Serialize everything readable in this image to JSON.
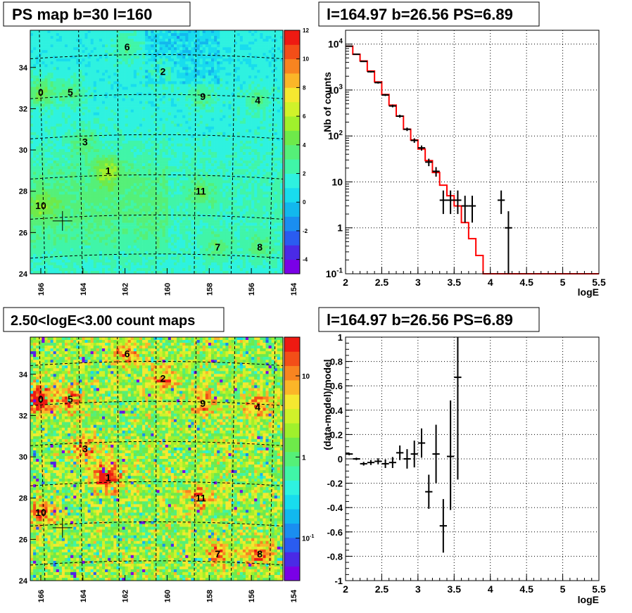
{
  "colors": {
    "data_marker": "#000000",
    "model_line": "#ff0000",
    "map_palette": [
      "#7a00e6",
      "#4a2ae6",
      "#2a5cf0",
      "#1a8ef0",
      "#12b8ee",
      "#18dcee",
      "#2ef2e0",
      "#40f5a8",
      "#55f078",
      "#6eea4a",
      "#a0f02c",
      "#d0f22a",
      "#f5e830",
      "#fbb628",
      "#f88420",
      "#f34e18",
      "#ee1a12"
    ]
  },
  "chart_data": [
    {
      "type": "heatmap",
      "title": "PS map b=30 l=160",
      "xlabel": "",
      "ylabel": "",
      "xlim": [
        154.5,
        166.5
      ],
      "x_reversed": true,
      "ylim": [
        24,
        35.8
      ],
      "xticks": [
        "166",
        "164",
        "162",
        "160",
        "158",
        "156",
        "154"
      ],
      "yticks": [
        "24",
        "26",
        "28",
        "30",
        "32",
        "34"
      ],
      "colorbar": {
        "scale": "linear",
        "range": [
          -5,
          12
        ],
        "ticks": [
          "-4",
          "-2",
          "0",
          "2",
          "4",
          "6",
          "8",
          "10",
          "12"
        ]
      },
      "sources": [
        {
          "label": "0",
          "x": 166.0,
          "y": 32.8
        },
        {
          "label": "1",
          "x": 162.8,
          "y": 29.0
        },
        {
          "label": "2",
          "x": 160.2,
          "y": 33.8
        },
        {
          "label": "3",
          "x": 163.9,
          "y": 30.4
        },
        {
          "label": "4",
          "x": 155.7,
          "y": 32.4
        },
        {
          "label": "5",
          "x": 164.6,
          "y": 32.8
        },
        {
          "label": "6",
          "x": 161.9,
          "y": 35.0
        },
        {
          "label": "7",
          "x": 157.6,
          "y": 25.3
        },
        {
          "label": "8",
          "x": 155.6,
          "y": 25.3
        },
        {
          "label": "9",
          "x": 158.3,
          "y": 32.6
        },
        {
          "label": "10",
          "x": 166.0,
          "y": 27.3
        },
        {
          "label": "11",
          "x": 158.4,
          "y": 28.0
        }
      ],
      "marker": {
        "x": 164.97,
        "y": 26.56
      }
    },
    {
      "type": "step",
      "title": "l=164.97 b=26.56 PS=6.89",
      "xlabel": "logE",
      "ylabel": "Nb of counts",
      "xlim": [
        2,
        5.5
      ],
      "ylim": [
        0.1,
        20000
      ],
      "yscale": "log",
      "xticks": [
        "2",
        "2.5",
        "3",
        "3.5",
        "4",
        "4.5",
        "5",
        "5.5"
      ],
      "yticks": [
        {
          "v": 0.1,
          "base": "10",
          "exp": "-1"
        },
        {
          "v": 1,
          "base": "1",
          "exp": ""
        },
        {
          "v": 10,
          "base": "10",
          "exp": ""
        },
        {
          "v": 100,
          "base": "10",
          "exp": "2"
        },
        {
          "v": 1000,
          "base": "10",
          "exp": "3"
        },
        {
          "v": 10000,
          "base": "10",
          "exp": "4"
        }
      ],
      "grid": true,
      "model": {
        "bin_edges": [
          2,
          2.1,
          2.2,
          2.3,
          2.4,
          2.5,
          2.6,
          2.7,
          2.8,
          2.9,
          3,
          3.1,
          3.2,
          3.3,
          3.4,
          3.5,
          3.6,
          3.7,
          3.8,
          3.9,
          4,
          4.1,
          4.2,
          4.3,
          4.4,
          4.5,
          4.6,
          4.7,
          4.8,
          4.9,
          5,
          5.1,
          5.2,
          5.3,
          5.4,
          5.5
        ],
        "values": [
          9000,
          6000,
          4300,
          2600,
          1500,
          800,
          470,
          270,
          140,
          82,
          52,
          29,
          16,
          8.5,
          5,
          3.0,
          1.3,
          0.58,
          0.25,
          0.1,
          0.1,
          0.1,
          0.1,
          0.1,
          0.1,
          0.1,
          0.1,
          0.1,
          0.1,
          0.1,
          0.1,
          0.1,
          0.1,
          0.1,
          0.1
        ]
      },
      "data": [
        {
          "x": 2.05,
          "y": 9000,
          "lo": 8800,
          "hi": 9200
        },
        {
          "x": 2.15,
          "y": 6000,
          "lo": 5850,
          "hi": 6150
        },
        {
          "x": 2.25,
          "y": 4200,
          "lo": 4080,
          "hi": 4320
        },
        {
          "x": 2.35,
          "y": 2500,
          "lo": 2400,
          "hi": 2600
        },
        {
          "x": 2.45,
          "y": 1450,
          "lo": 1380,
          "hi": 1520
        },
        {
          "x": 2.55,
          "y": 780,
          "lo": 740,
          "hi": 820
        },
        {
          "x": 2.65,
          "y": 450,
          "lo": 420,
          "hi": 480
        },
        {
          "x": 2.75,
          "y": 270,
          "lo": 250,
          "hi": 290
        },
        {
          "x": 2.85,
          "y": 140,
          "lo": 128,
          "hi": 152
        },
        {
          "x": 2.95,
          "y": 80,
          "lo": 71,
          "hi": 89
        },
        {
          "x": 3.05,
          "y": 55,
          "lo": 48,
          "hi": 62
        },
        {
          "x": 3.15,
          "y": 27,
          "lo": 22,
          "hi": 32
        },
        {
          "x": 3.25,
          "y": 17,
          "lo": 13,
          "hi": 21
        },
        {
          "x": 3.35,
          "y": 4,
          "lo": 2,
          "hi": 6.5
        },
        {
          "x": 3.45,
          "y": 4,
          "lo": 2,
          "hi": 6.5
        },
        {
          "x": 3.55,
          "y": 4,
          "lo": 2,
          "hi": 6.5
        },
        {
          "x": 3.65,
          "y": 3,
          "lo": 1.3,
          "hi": 5
        },
        {
          "x": 3.75,
          "y": 3,
          "lo": 1.3,
          "hi": 5
        },
        {
          "x": 4.15,
          "y": 4,
          "lo": 2,
          "hi": 6.5
        },
        {
          "x": 4.25,
          "y": 1,
          "lo": 0.1,
          "hi": 2.3
        }
      ]
    },
    {
      "type": "heatmap",
      "title": "2.50<logE<3.00 count maps",
      "xlabel": "",
      "ylabel": "",
      "xlim": [
        154.5,
        166.5
      ],
      "x_reversed": true,
      "ylim": [
        24,
        35.8
      ],
      "xticks": [
        "166",
        "164",
        "162",
        "160",
        "158",
        "156",
        "154"
      ],
      "yticks": [
        "24",
        "26",
        "28",
        "30",
        "32",
        "34"
      ],
      "colorbar": {
        "scale": "log",
        "range": [
          0.03,
          30
        ],
        "ticks": [
          {
            "v": 10,
            "base": "10",
            "exp": ""
          },
          {
            "v": 1,
            "base": "1",
            "exp": ""
          },
          {
            "v": 0.1,
            "base": "10",
            "exp": "-1"
          }
        ]
      },
      "sources": [
        {
          "label": "0",
          "x": 166.0,
          "y": 32.8
        },
        {
          "label": "1",
          "x": 162.8,
          "y": 29.0
        },
        {
          "label": "2",
          "x": 160.2,
          "y": 33.8
        },
        {
          "label": "3",
          "x": 163.9,
          "y": 30.4
        },
        {
          "label": "4",
          "x": 155.7,
          "y": 32.4
        },
        {
          "label": "5",
          "x": 164.6,
          "y": 32.8
        },
        {
          "label": "6",
          "x": 161.9,
          "y": 35.0
        },
        {
          "label": "7",
          "x": 157.6,
          "y": 25.3
        },
        {
          "label": "8",
          "x": 155.6,
          "y": 25.3
        },
        {
          "label": "9",
          "x": 158.3,
          "y": 32.6
        },
        {
          "label": "10",
          "x": 166.0,
          "y": 27.3
        },
        {
          "label": "11",
          "x": 158.4,
          "y": 28.0
        }
      ],
      "marker": {
        "x": 164.97,
        "y": 26.56
      }
    },
    {
      "type": "scatter",
      "title": "l=164.97 b=26.56 PS=6.89",
      "xlabel": "logE",
      "ylabel": "(data-model)/model",
      "xlim": [
        2,
        5.5
      ],
      "ylim": [
        -1,
        1
      ],
      "xticks": [
        "2",
        "2.5",
        "3",
        "3.5",
        "4",
        "4.5",
        "5",
        "5.5"
      ],
      "yticks": [
        "-1",
        "-0.8",
        "-0.6",
        "-0.4",
        "-0.2",
        "0",
        "0.2",
        "0.4",
        "0.6",
        "0.8",
        "1"
      ],
      "grid": true,
      "data": [
        {
          "x": 2.05,
          "y": 0.04,
          "lo": 0.03,
          "hi": 0.05
        },
        {
          "x": 2.15,
          "y": 0.0,
          "lo": -0.01,
          "hi": 0.01
        },
        {
          "x": 2.25,
          "y": -0.04,
          "lo": -0.055,
          "hi": -0.025
        },
        {
          "x": 2.35,
          "y": -0.03,
          "lo": -0.05,
          "hi": -0.01
        },
        {
          "x": 2.45,
          "y": -0.02,
          "lo": -0.045,
          "hi": 0.005
        },
        {
          "x": 2.55,
          "y": -0.04,
          "lo": -0.075,
          "hi": -0.005
        },
        {
          "x": 2.65,
          "y": -0.03,
          "lo": -0.075,
          "hi": 0.015
        },
        {
          "x": 2.75,
          "y": 0.05,
          "lo": -0.01,
          "hi": 0.11
        },
        {
          "x": 2.85,
          "y": 0.0,
          "lo": -0.08,
          "hi": 0.08
        },
        {
          "x": 2.95,
          "y": 0.04,
          "lo": -0.07,
          "hi": 0.15
        },
        {
          "x": 3.05,
          "y": 0.13,
          "lo": 0.01,
          "hi": 0.25
        },
        {
          "x": 3.15,
          "y": -0.27,
          "lo": -0.41,
          "hi": -0.13
        },
        {
          "x": 3.25,
          "y": 0.04,
          "lo": -0.2,
          "hi": 0.28
        },
        {
          "x": 3.35,
          "y": -0.55,
          "lo": -0.77,
          "hi": -0.33
        },
        {
          "x": 3.45,
          "y": 0.02,
          "lo": -0.42,
          "hi": 0.48
        },
        {
          "x": 3.55,
          "y": 0.67,
          "lo": -0.17,
          "hi": 1.0
        }
      ]
    }
  ]
}
